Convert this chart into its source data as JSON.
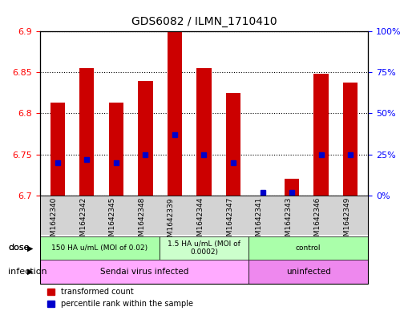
{
  "title": "GDS6082 / ILMN_1710410",
  "samples": [
    "GSM1642340",
    "GSM1642342",
    "GSM1642345",
    "GSM1642348",
    "GSM1642339",
    "GSM1642344",
    "GSM1642347",
    "GSM1642341",
    "GSM1642343",
    "GSM1642346",
    "GSM1642349"
  ],
  "transformed_counts": [
    6.813,
    6.855,
    6.813,
    6.84,
    6.9,
    6.855,
    6.825,
    6.7,
    6.72,
    6.848,
    6.838
  ],
  "percentile_ranks": [
    20,
    22,
    20,
    25,
    37,
    25,
    20,
    2,
    2,
    25,
    25
  ],
  "ylim_left": [
    6.7,
    6.9
  ],
  "ylim_right": [
    0,
    100
  ],
  "yticks_left": [
    6.7,
    6.75,
    6.8,
    6.85,
    6.9
  ],
  "yticks_right": [
    0,
    25,
    50,
    75,
    100
  ],
  "bar_color": "#cc0000",
  "dot_color": "#0000cc",
  "bar_bottom": 6.7,
  "dose_groups": [
    {
      "label": "150 HA u/mL (MOI of 0.02)",
      "start": 0,
      "end": 4,
      "color": "#90ee90"
    },
    {
      "label": "1.5 HA u/mL (MOI of\n0.0002)",
      "start": 4,
      "end": 7,
      "color": "#90ee90"
    },
    {
      "label": "control",
      "start": 7,
      "end": 11,
      "color": "#90ee90"
    }
  ],
  "infection_groups": [
    {
      "label": "Sendai virus infected",
      "start": 0,
      "end": 7,
      "color": "#ffaaff"
    },
    {
      "label": "uninfected",
      "start": 7,
      "end": 11,
      "color": "#ff88ff"
    }
  ],
  "background_color": "#ffffff",
  "grid_color": "#000000",
  "tick_area_color": "#d3d3d3"
}
